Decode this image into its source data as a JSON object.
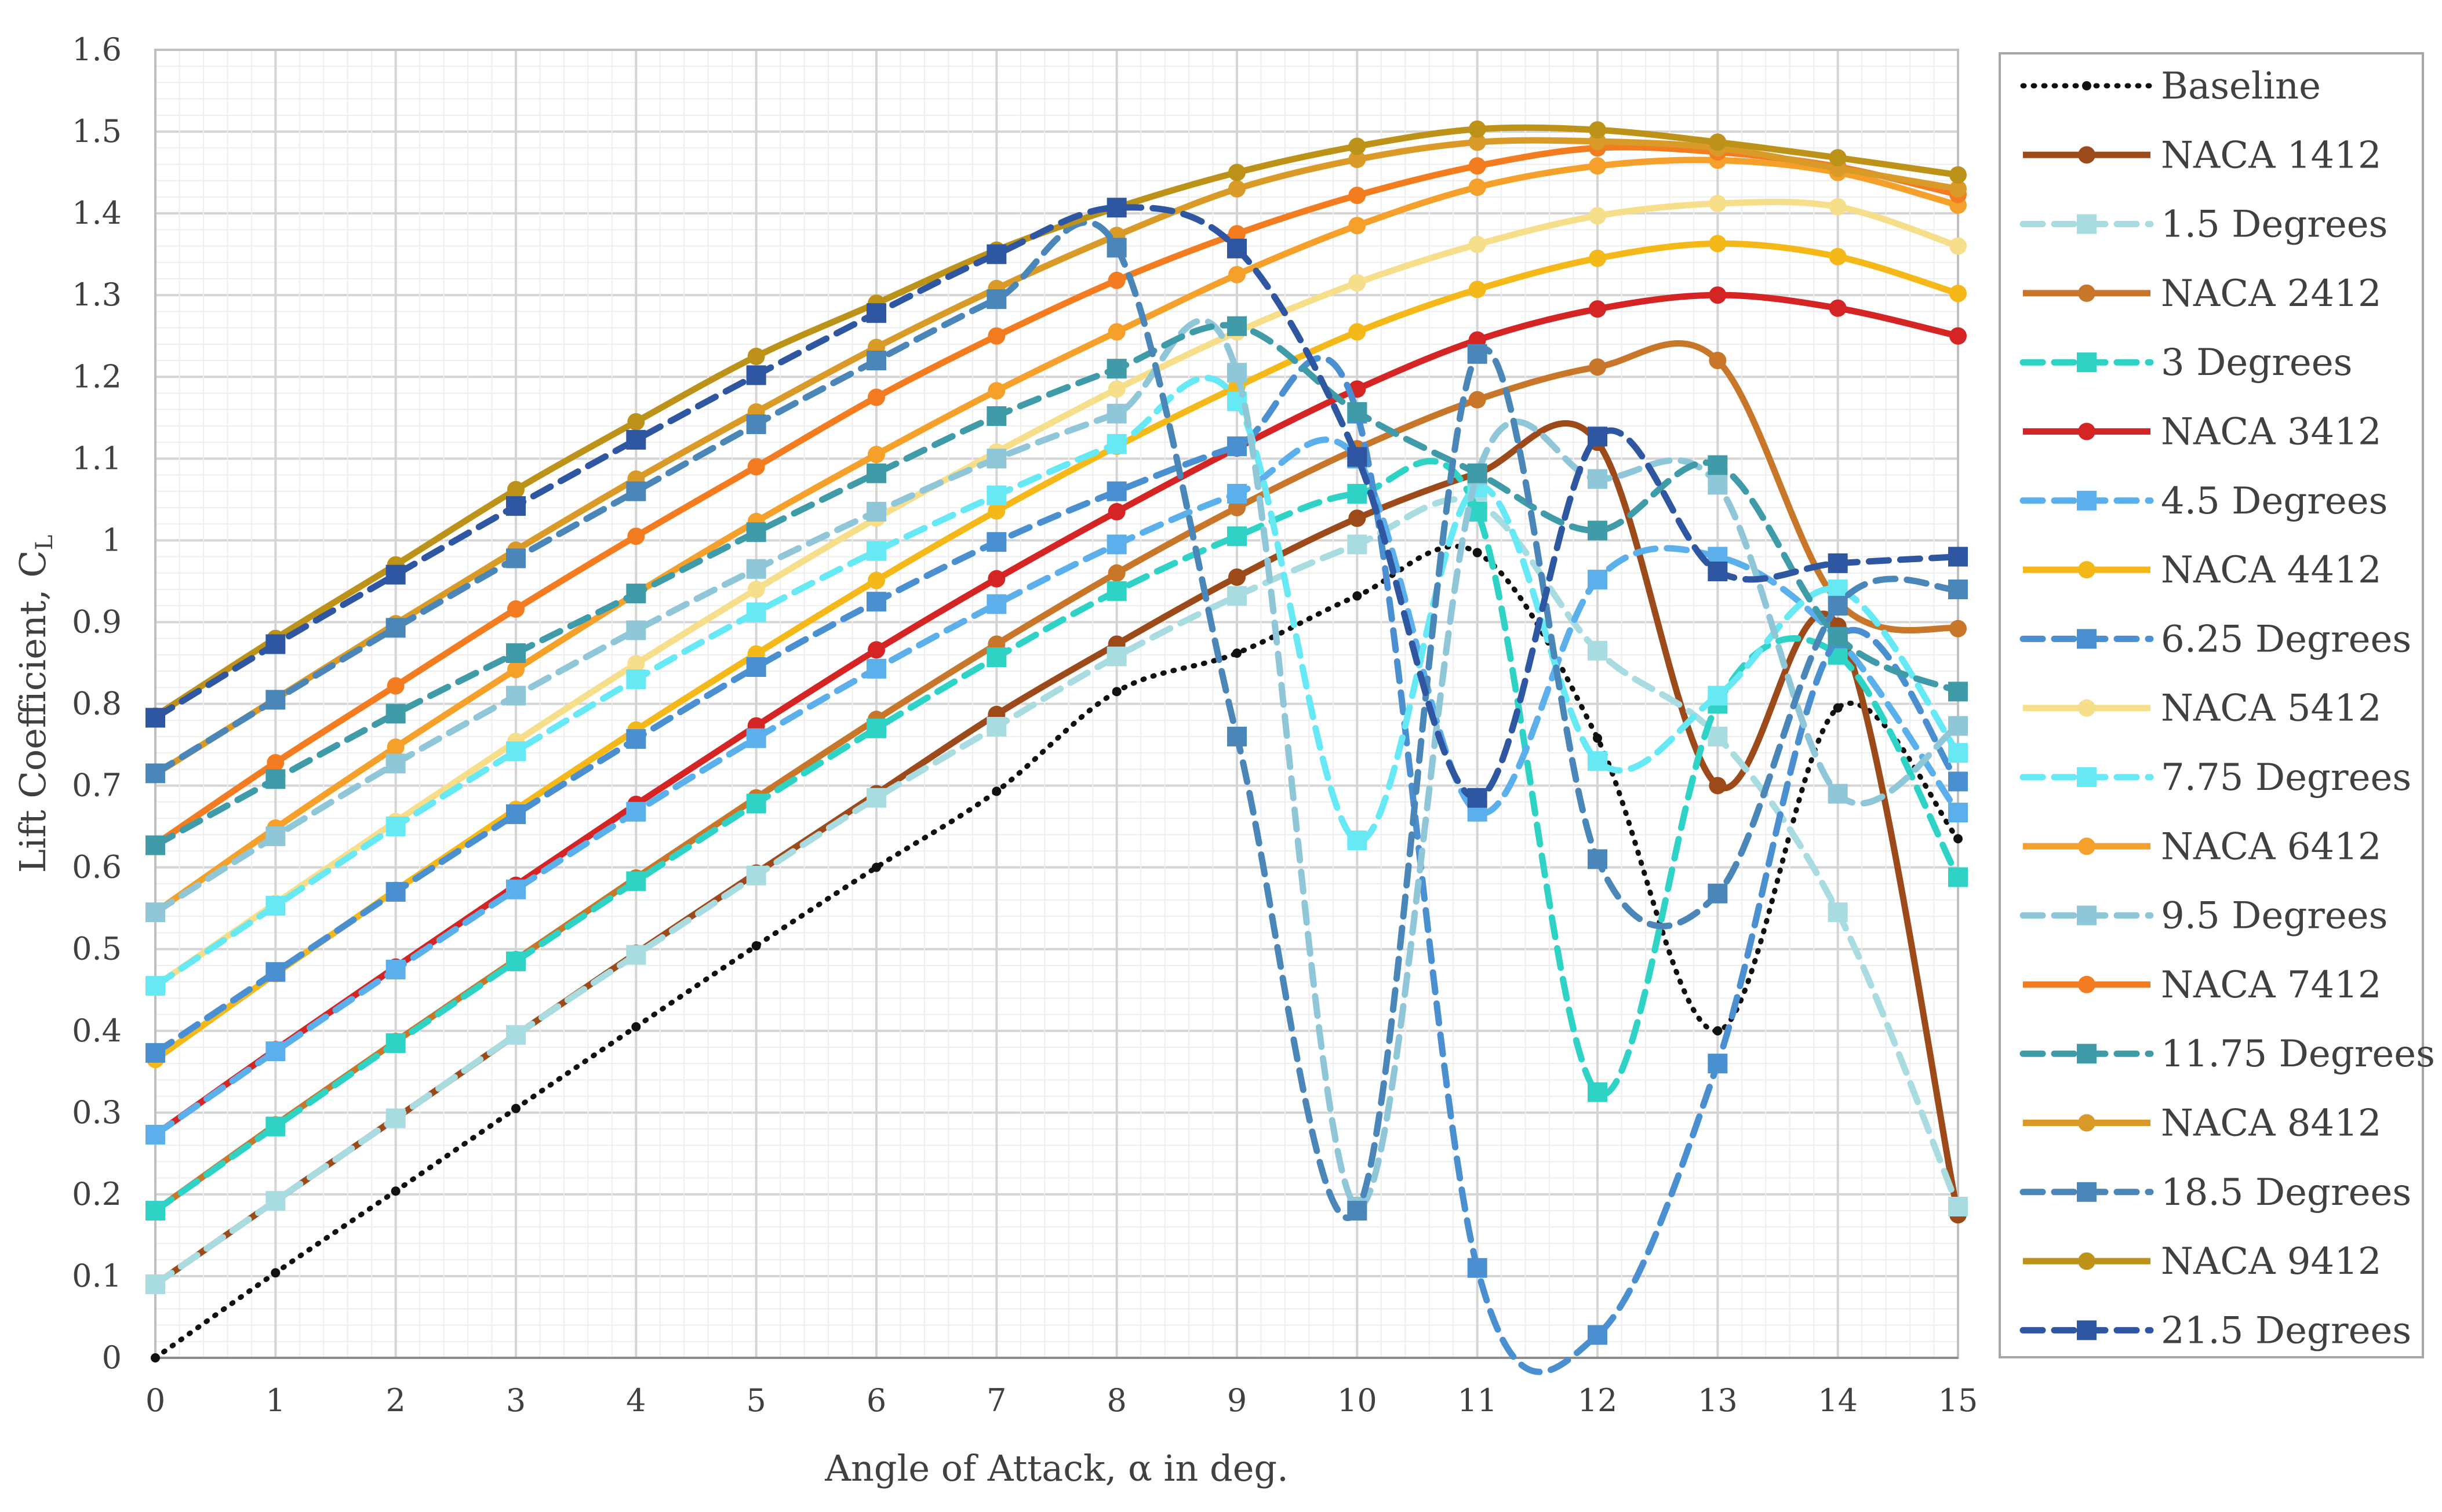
{
  "chart_data": {
    "type": "line",
    "xlabel": "Angle of Attack, α in deg.",
    "ylabel": "Lift Coefficient, C",
    "ylabel_subscript": "L",
    "xlim": [
      0,
      15
    ],
    "ylim": [
      0,
      1.6
    ],
    "grid": true,
    "legend_position": "right",
    "x": [
      0,
      1,
      2,
      3,
      4,
      5,
      6,
      7,
      8,
      9,
      10,
      11,
      12,
      13,
      14,
      15
    ],
    "x_tick_labels": [
      "0",
      "1",
      "2",
      "3",
      "4",
      "5",
      "6",
      "7",
      "8",
      "9",
      "10",
      "11",
      "12",
      "13",
      "14",
      "15"
    ],
    "y_tick_labels": [
      "0",
      "0.1",
      "0.2",
      "0.3",
      "0.4",
      "0.5",
      "0.6",
      "0.7",
      "0.8",
      "0.9",
      "1",
      "1.1",
      "1.2",
      "1.3",
      "1.4",
      "1.5",
      "1.6"
    ],
    "series": [
      {
        "name": "Baseline",
        "color": "#111111",
        "style": "dotted",
        "marker": "dot",
        "values": [
          0.0,
          0.104,
          0.204,
          0.305,
          0.405,
          0.504,
          0.6,
          0.693,
          0.815,
          0.862,
          0.932,
          0.985,
          0.758,
          0.4,
          0.795,
          0.635
        ]
      },
      {
        "name": "NACA 1412",
        "color": "#9C4A1A",
        "style": "solid",
        "marker": "circle",
        "values": [
          0.09,
          0.192,
          0.293,
          0.395,
          0.495,
          0.593,
          0.69,
          0.787,
          0.873,
          0.955,
          1.027,
          1.082,
          1.12,
          0.7,
          0.895,
          0.175
        ]
      },
      {
        "name": "1.5 Degrees",
        "color": "#A9DCE0",
        "style": "dashed",
        "marker": "square",
        "values": [
          0.09,
          0.192,
          0.293,
          0.395,
          0.493,
          0.59,
          0.685,
          0.772,
          0.858,
          0.932,
          0.995,
          1.045,
          0.865,
          0.76,
          0.545,
          0.185
        ]
      },
      {
        "name": "NACA 2412",
        "color": "#C8762A",
        "style": "solid",
        "marker": "circle",
        "values": [
          0.18,
          0.285,
          0.387,
          0.487,
          0.587,
          0.685,
          0.781,
          0.873,
          0.96,
          1.04,
          1.112,
          1.172,
          1.212,
          1.22,
          0.925,
          0.892
        ]
      },
      {
        "name": "3 Degrees",
        "color": "#2ED3C6",
        "style": "dashed",
        "marker": "square",
        "values": [
          0.18,
          0.283,
          0.385,
          0.485,
          0.583,
          0.678,
          0.77,
          0.857,
          0.938,
          1.005,
          1.057,
          1.035,
          0.325,
          0.8,
          0.86,
          0.588
        ]
      },
      {
        "name": "NACA 3412",
        "color": "#D42424",
        "style": "solid",
        "marker": "circle",
        "values": [
          0.273,
          0.377,
          0.478,
          0.578,
          0.677,
          0.773,
          0.866,
          0.953,
          1.035,
          1.113,
          1.185,
          1.245,
          1.283,
          1.3,
          1.284,
          1.25
        ]
      },
      {
        "name": "4.5 Degrees",
        "color": "#5BB0EC",
        "style": "dashed",
        "marker": "square",
        "values": [
          0.273,
          0.375,
          0.475,
          0.573,
          0.668,
          0.758,
          0.843,
          0.922,
          0.995,
          1.057,
          1.1,
          0.668,
          0.952,
          0.98,
          0.88,
          0.667
        ]
      },
      {
        "name": "NACA 4412",
        "color": "#F5B819",
        "style": "solid",
        "marker": "circle",
        "values": [
          0.365,
          0.47,
          0.572,
          0.671,
          0.768,
          0.861,
          0.951,
          1.036,
          1.115,
          1.188,
          1.255,
          1.307,
          1.345,
          1.363,
          1.347,
          1.302
        ]
      },
      {
        "name": "6.25 Degrees",
        "color": "#4A8FD0",
        "style": "dashed",
        "marker": "square",
        "values": [
          0.373,
          0.472,
          0.57,
          0.665,
          0.757,
          0.845,
          0.925,
          0.998,
          1.06,
          1.115,
          1.155,
          0.11,
          0.028,
          0.36,
          0.88,
          0.705
        ]
      },
      {
        "name": "NACA 5412",
        "color": "#F7DE8A",
        "style": "solid",
        "marker": "circle",
        "values": [
          0.455,
          0.556,
          0.656,
          0.754,
          0.849,
          0.94,
          1.027,
          1.108,
          1.185,
          1.255,
          1.315,
          1.362,
          1.397,
          1.412,
          1.408,
          1.36
        ]
      },
      {
        "name": "7.75 Degrees",
        "color": "#66E8F5",
        "style": "dashed",
        "marker": "square",
        "values": [
          0.455,
          0.553,
          0.65,
          0.742,
          0.83,
          0.912,
          0.987,
          1.055,
          1.118,
          1.17,
          0.633,
          1.065,
          0.73,
          0.81,
          0.94,
          0.74
        ]
      },
      {
        "name": "NACA 6412",
        "color": "#F5A02A",
        "style": "solid",
        "marker": "circle",
        "values": [
          0.545,
          0.648,
          0.747,
          0.842,
          0.935,
          1.023,
          1.105,
          1.183,
          1.255,
          1.325,
          1.385,
          1.432,
          1.458,
          1.465,
          1.45,
          1.41
        ]
      },
      {
        "name": "9.5 Degrees",
        "color": "#8FC7D8",
        "style": "dashed",
        "marker": "square",
        "values": [
          0.545,
          0.638,
          0.727,
          0.81,
          0.89,
          0.965,
          1.035,
          1.1,
          1.155,
          1.205,
          0.185,
          1.08,
          1.075,
          1.068,
          0.69,
          0.773
        ]
      },
      {
        "name": "NACA 7412",
        "color": "#F47C20",
        "style": "solid",
        "marker": "circle",
        "values": [
          0.628,
          0.728,
          0.822,
          0.916,
          1.005,
          1.09,
          1.175,
          1.25,
          1.318,
          1.375,
          1.422,
          1.458,
          1.48,
          1.475,
          1.457,
          1.423
        ]
      },
      {
        "name": "11.75 Degrees",
        "color": "#3F9BA8",
        "style": "dashed",
        "marker": "square",
        "values": [
          0.627,
          0.708,
          0.788,
          0.862,
          0.935,
          1.01,
          1.082,
          1.152,
          1.21,
          1.262,
          1.157,
          1.082,
          1.012,
          1.092,
          0.882,
          0.815
        ]
      },
      {
        "name": "NACA 8412",
        "color": "#D99A28",
        "style": "solid",
        "marker": "circle",
        "values": [
          0.714,
          0.806,
          0.898,
          0.988,
          1.075,
          1.157,
          1.236,
          1.308,
          1.373,
          1.43,
          1.466,
          1.487,
          1.488,
          1.48,
          1.455,
          1.43
        ]
      },
      {
        "name": "18.5 Degrees",
        "color": "#4A86B8",
        "style": "dashed",
        "marker": "square",
        "values": [
          0.715,
          0.805,
          0.893,
          0.978,
          1.06,
          1.142,
          1.22,
          1.295,
          1.358,
          0.76,
          0.18,
          1.228,
          0.61,
          0.568,
          0.92,
          0.94
        ]
      },
      {
        "name": "NACA 9412",
        "color": "#BD9219",
        "style": "solid",
        "marker": "circle",
        "values": [
          0.785,
          0.88,
          0.97,
          1.062,
          1.145,
          1.225,
          1.29,
          1.355,
          1.407,
          1.45,
          1.482,
          1.503,
          1.502,
          1.487,
          1.468,
          1.447
        ]
      },
      {
        "name": "21.5 Degrees",
        "color": "#2F56A0",
        "style": "dashed",
        "marker": "square",
        "values": [
          0.783,
          0.873,
          0.958,
          1.042,
          1.123,
          1.202,
          1.278,
          1.35,
          1.407,
          1.357,
          1.102,
          0.685,
          1.127,
          0.962,
          0.972,
          0.98
        ]
      }
    ]
  }
}
